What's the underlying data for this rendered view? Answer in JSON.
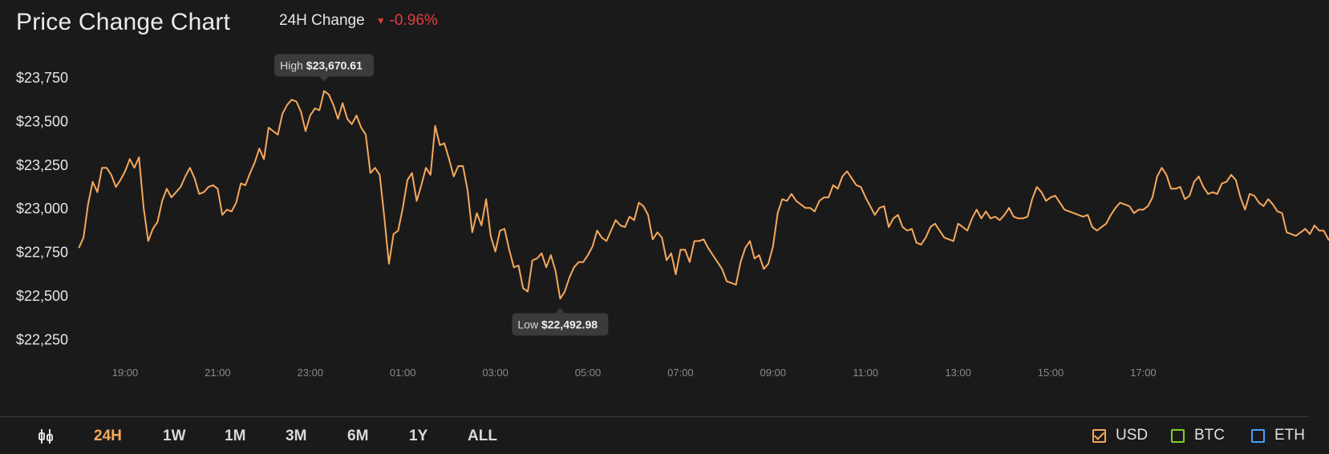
{
  "header": {
    "title": "Price Change Chart",
    "change_label": "24H Change",
    "change_value": "-0.96%",
    "change_direction_icon": "triangle-down-icon",
    "change_color": "#e23d3d"
  },
  "chart_data": {
    "type": "line",
    "line_color": "#f5a95c",
    "y_ticks": [
      "$23,750",
      "$23,500",
      "$23,250",
      "$23,000",
      "$22,750",
      "$22,500",
      "$22,250"
    ],
    "ylim": [
      22250,
      23750
    ],
    "x_ticks": [
      "19:00",
      "21:00",
      "23:00",
      "01:00",
      "03:00",
      "05:00",
      "07:00",
      "09:00",
      "11:00",
      "13:00",
      "15:00",
      "17:00"
    ],
    "x_range_hours": [
      18.0,
      36.9
    ],
    "grid": false,
    "series": [
      {
        "points": [
          [
            18.0,
            22770
          ],
          [
            18.1,
            22830
          ],
          [
            18.2,
            23020
          ],
          [
            18.3,
            23150
          ],
          [
            18.4,
            23090
          ],
          [
            18.5,
            23230
          ],
          [
            18.6,
            23230
          ],
          [
            18.7,
            23190
          ],
          [
            18.8,
            23120
          ],
          [
            18.9,
            23160
          ],
          [
            19.0,
            23210
          ],
          [
            19.1,
            23280
          ],
          [
            19.2,
            23230
          ],
          [
            19.3,
            23290
          ],
          [
            19.4,
            23000
          ],
          [
            19.5,
            22810
          ],
          [
            19.6,
            22880
          ],
          [
            19.7,
            22920
          ],
          [
            19.8,
            23040
          ],
          [
            19.9,
            23110
          ],
          [
            20.0,
            23060
          ],
          [
            20.1,
            23090
          ],
          [
            20.2,
            23120
          ],
          [
            20.3,
            23180
          ],
          [
            20.4,
            23230
          ],
          [
            20.5,
            23170
          ],
          [
            20.6,
            23080
          ],
          [
            20.7,
            23090
          ],
          [
            20.8,
            23120
          ],
          [
            20.9,
            23130
          ],
          [
            21.0,
            23110
          ],
          [
            21.1,
            22960
          ],
          [
            21.2,
            22990
          ],
          [
            21.3,
            22980
          ],
          [
            21.4,
            23030
          ],
          [
            21.5,
            23140
          ],
          [
            21.6,
            23130
          ],
          [
            21.7,
            23200
          ],
          [
            21.8,
            23260
          ],
          [
            21.9,
            23340
          ],
          [
            22.0,
            23280
          ],
          [
            22.1,
            23460
          ],
          [
            22.2,
            23440
          ],
          [
            22.3,
            23420
          ],
          [
            22.4,
            23540
          ],
          [
            22.5,
            23590
          ],
          [
            22.6,
            23620
          ],
          [
            22.7,
            23610
          ],
          [
            22.8,
            23550
          ],
          [
            22.9,
            23440
          ],
          [
            23.0,
            23530
          ],
          [
            23.1,
            23570
          ],
          [
            23.2,
            23560
          ],
          [
            23.3,
            23670
          ],
          [
            23.4,
            23650
          ],
          [
            23.5,
            23590
          ],
          [
            23.6,
            23510
          ],
          [
            23.7,
            23600
          ],
          [
            23.8,
            23510
          ],
          [
            23.9,
            23480
          ],
          [
            24.0,
            23530
          ],
          [
            24.1,
            23460
          ],
          [
            24.2,
            23420
          ],
          [
            24.3,
            23200
          ],
          [
            24.4,
            23230
          ],
          [
            24.5,
            23190
          ],
          [
            24.6,
            22950
          ],
          [
            24.7,
            22680
          ],
          [
            24.8,
            22850
          ],
          [
            24.9,
            22870
          ],
          [
            25.0,
            23000
          ],
          [
            25.1,
            23160
          ],
          [
            25.2,
            23200
          ],
          [
            25.3,
            23040
          ],
          [
            25.4,
            23130
          ],
          [
            25.5,
            23230
          ],
          [
            25.6,
            23190
          ],
          [
            25.7,
            23470
          ],
          [
            25.8,
            23360
          ],
          [
            25.9,
            23370
          ],
          [
            26.0,
            23280
          ],
          [
            26.1,
            23180
          ],
          [
            26.2,
            23240
          ],
          [
            26.3,
            23240
          ],
          [
            26.4,
            23100
          ],
          [
            26.5,
            22860
          ],
          [
            26.6,
            22970
          ],
          [
            26.7,
            22900
          ],
          [
            26.8,
            23050
          ],
          [
            26.9,
            22840
          ],
          [
            27.0,
            22750
          ],
          [
            27.1,
            22870
          ],
          [
            27.2,
            22880
          ],
          [
            27.3,
            22760
          ],
          [
            27.4,
            22660
          ],
          [
            27.5,
            22670
          ],
          [
            27.6,
            22540
          ],
          [
            27.7,
            22520
          ],
          [
            27.8,
            22700
          ],
          [
            27.9,
            22710
          ],
          [
            28.0,
            22740
          ],
          [
            28.1,
            22660
          ],
          [
            28.2,
            22730
          ],
          [
            28.3,
            22640
          ],
          [
            28.4,
            22480
          ],
          [
            28.5,
            22520
          ],
          [
            28.6,
            22600
          ],
          [
            28.7,
            22660
          ],
          [
            28.8,
            22690
          ],
          [
            28.9,
            22690
          ],
          [
            29.0,
            22730
          ],
          [
            29.1,
            22780
          ],
          [
            29.2,
            22870
          ],
          [
            29.3,
            22830
          ],
          [
            29.4,
            22810
          ],
          [
            29.5,
            22870
          ],
          [
            29.6,
            22930
          ],
          [
            29.7,
            22900
          ],
          [
            29.8,
            22890
          ],
          [
            29.9,
            22950
          ],
          [
            30.0,
            22930
          ],
          [
            30.1,
            23030
          ],
          [
            30.2,
            23010
          ],
          [
            30.3,
            22960
          ],
          [
            30.4,
            22820
          ],
          [
            30.5,
            22860
          ],
          [
            30.6,
            22830
          ],
          [
            30.7,
            22700
          ],
          [
            30.8,
            22740
          ],
          [
            30.9,
            22620
          ],
          [
            31.0,
            22760
          ],
          [
            31.1,
            22760
          ],
          [
            31.2,
            22690
          ],
          [
            31.3,
            22810
          ],
          [
            31.4,
            22810
          ],
          [
            31.5,
            22820
          ],
          [
            31.6,
            22770
          ],
          [
            31.7,
            22730
          ],
          [
            31.8,
            22690
          ],
          [
            31.9,
            22650
          ],
          [
            32.0,
            22580
          ],
          [
            32.1,
            22570
          ],
          [
            32.2,
            22560
          ],
          [
            32.3,
            22690
          ],
          [
            32.4,
            22770
          ],
          [
            32.5,
            22810
          ],
          [
            32.6,
            22710
          ],
          [
            32.7,
            22730
          ],
          [
            32.8,
            22650
          ],
          [
            32.9,
            22680
          ],
          [
            33.0,
            22780
          ],
          [
            33.1,
            22970
          ],
          [
            33.2,
            23050
          ],
          [
            33.3,
            23040
          ],
          [
            33.4,
            23080
          ],
          [
            33.5,
            23040
          ],
          [
            33.6,
            23020
          ],
          [
            33.7,
            23000
          ],
          [
            33.8,
            23000
          ],
          [
            33.9,
            22980
          ],
          [
            34.0,
            23040
          ],
          [
            34.1,
            23060
          ],
          [
            34.2,
            23060
          ],
          [
            34.3,
            23130
          ],
          [
            34.4,
            23110
          ],
          [
            34.5,
            23180
          ],
          [
            34.6,
            23210
          ],
          [
            34.7,
            23170
          ],
          [
            34.8,
            23130
          ],
          [
            34.9,
            23120
          ],
          [
            35.0,
            23060
          ],
          [
            35.1,
            23010
          ],
          [
            35.2,
            22960
          ],
          [
            35.3,
            23000
          ],
          [
            35.4,
            23010
          ],
          [
            35.5,
            22890
          ],
          [
            35.6,
            22940
          ],
          [
            35.7,
            22960
          ],
          [
            35.8,
            22890
          ],
          [
            35.9,
            22870
          ],
          [
            36.0,
            22880
          ],
          [
            36.1,
            22800
          ],
          [
            36.2,
            22790
          ],
          [
            36.3,
            22830
          ],
          [
            36.4,
            22890
          ],
          [
            36.5,
            22910
          ],
          [
            36.6,
            22870
          ],
          [
            36.7,
            22830
          ],
          [
            36.8,
            22820
          ],
          [
            36.9,
            22810
          ],
          [
            37.0,
            22910
          ],
          [
            37.1,
            22890
          ],
          [
            37.2,
            22870
          ],
          [
            37.3,
            22940
          ],
          [
            37.4,
            22990
          ],
          [
            37.5,
            22940
          ],
          [
            37.6,
            22980
          ],
          [
            37.7,
            22940
          ],
          [
            37.8,
            22950
          ],
          [
            37.9,
            22930
          ],
          [
            38.0,
            22960
          ],
          [
            38.1,
            23000
          ],
          [
            38.2,
            22950
          ],
          [
            38.3,
            22940
          ],
          [
            38.4,
            22940
          ],
          [
            38.5,
            22950
          ],
          [
            38.6,
            23050
          ],
          [
            38.7,
            23120
          ],
          [
            38.8,
            23090
          ],
          [
            38.9,
            23040
          ],
          [
            39.0,
            23060
          ],
          [
            39.1,
            23070
          ],
          [
            39.2,
            23030
          ],
          [
            39.3,
            22990
          ],
          [
            39.4,
            22980
          ],
          [
            39.5,
            22970
          ],
          [
            39.6,
            22960
          ],
          [
            39.7,
            22950
          ],
          [
            39.8,
            22960
          ],
          [
            39.9,
            22890
          ],
          [
            40.0,
            22870
          ],
          [
            40.1,
            22890
          ],
          [
            40.2,
            22910
          ],
          [
            40.3,
            22960
          ],
          [
            40.4,
            23000
          ],
          [
            40.5,
            23030
          ],
          [
            40.6,
            23020
          ],
          [
            40.7,
            23010
          ],
          [
            40.8,
            22970
          ],
          [
            40.9,
            22990
          ],
          [
            41.0,
            22990
          ],
          [
            41.1,
            23010
          ],
          [
            41.2,
            23060
          ],
          [
            41.3,
            23180
          ],
          [
            41.4,
            23230
          ],
          [
            41.5,
            23190
          ],
          [
            41.6,
            23110
          ],
          [
            41.7,
            23110
          ],
          [
            41.8,
            23120
          ],
          [
            41.9,
            23050
          ],
          [
            42.0,
            23070
          ],
          [
            42.1,
            23150
          ],
          [
            42.2,
            23180
          ],
          [
            42.3,
            23120
          ],
          [
            42.4,
            23080
          ],
          [
            42.5,
            23090
          ],
          [
            42.6,
            23080
          ],
          [
            42.7,
            23140
          ],
          [
            42.8,
            23150
          ],
          [
            42.9,
            23190
          ],
          [
            43.0,
            23160
          ],
          [
            43.1,
            23060
          ],
          [
            43.2,
            22990
          ],
          [
            43.3,
            23080
          ],
          [
            43.4,
            23070
          ],
          [
            43.5,
            23030
          ],
          [
            43.6,
            23010
          ],
          [
            43.7,
            23050
          ],
          [
            43.8,
            23020
          ],
          [
            43.9,
            22980
          ],
          [
            44.0,
            22970
          ],
          [
            44.1,
            22860
          ],
          [
            44.2,
            22850
          ],
          [
            44.3,
            22840
          ],
          [
            44.4,
            22860
          ],
          [
            44.5,
            22880
          ],
          [
            44.6,
            22850
          ],
          [
            44.7,
            22900
          ],
          [
            44.8,
            22870
          ],
          [
            44.9,
            22870
          ],
          [
            45.0,
            22820
          ],
          [
            45.1,
            22800
          ],
          [
            45.2,
            22790
          ],
          [
            45.3,
            22780
          ],
          [
            45.4,
            22810
          ],
          [
            45.5,
            23010
          ],
          [
            45.6,
            22970
          ],
          [
            45.7,
            22940
          ],
          [
            45.8,
            22930
          ],
          [
            45.9,
            22960
          ],
          [
            46.0,
            22950
          ],
          [
            46.1,
            22960
          ],
          [
            46.2,
            22920
          ],
          [
            46.3,
            22880
          ]
        ]
      }
    ],
    "annotations": [
      {
        "type": "high",
        "label": "High",
        "value": "$23,670.61",
        "x": 23.3,
        "y": 23670
      },
      {
        "type": "low",
        "label": "Low",
        "value": "$22,492.98",
        "x": 28.4,
        "y": 22480
      }
    ]
  },
  "bottom": {
    "range_icon": "candlestick-toggle-icon",
    "ranges": [
      "24H",
      "1W",
      "1M",
      "3M",
      "6M",
      "1Y",
      "ALL"
    ],
    "active_range": "24H",
    "currencies": [
      {
        "label": "USD",
        "color": "#f5a95c",
        "checked": true
      },
      {
        "label": "BTC",
        "color": "#7ed321",
        "checked": false
      },
      {
        "label": "ETH",
        "color": "#4a9fff",
        "checked": false
      }
    ]
  }
}
